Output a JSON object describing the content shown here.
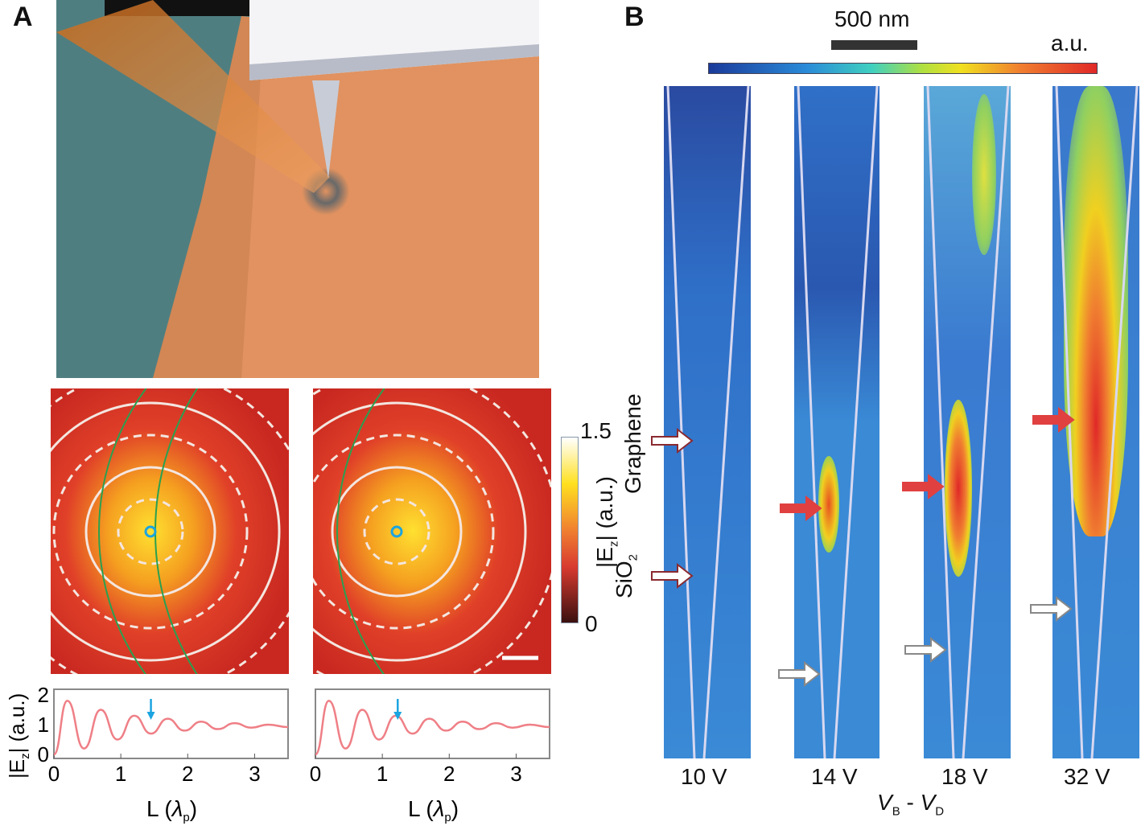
{
  "panel_labels": {
    "a": "A",
    "b": "B"
  },
  "colors": {
    "heat_red": "#d8352a",
    "heat_yellow": "#f6d21b",
    "jet_blue": "#2f6fc8",
    "trace": "#ef7f86",
    "marker": "#1ba4e0"
  },
  "panel_a": {
    "colorbar": {
      "max_label": "1.5",
      "min_label": "0",
      "label": "|E",
      "label_sub": "z",
      "label_tail": "| (a.u.)"
    },
    "side_labels": {
      "graphene": "Graphene",
      "sio2": "SiO",
      "sio2_sub": "2"
    }
  },
  "panel_b": {
    "scalebar_label": "500 nm",
    "colorbar_unit": "a.u.",
    "strip_labels": [
      "10 V",
      "14 V",
      "18 V",
      "32 V"
    ],
    "xlabel": {
      "v1": "V",
      "s1": "B",
      "sep": " - ",
      "v2": "V",
      "s2": "D"
    }
  },
  "chart_data": [
    {
      "type": "line",
      "title": "",
      "xlabel": "L (λp)",
      "xlabel_main": "L (",
      "xlabel_sym": "λ",
      "xlabel_sub": "p",
      "xlabel_end": ")",
      "ylabel": "|Ez| (a.u.)",
      "ylabel_main": "|E",
      "ylabel_sub": "z",
      "ylabel_end": "| (a.u.)",
      "xlim": [
        0,
        3.5
      ],
      "ylim": [
        0,
        2
      ],
      "xticks": [
        "0",
        "1",
        "2",
        "3"
      ],
      "yticks": [
        "0",
        "1",
        "2"
      ],
      "x": [
        0,
        0.2,
        0.45,
        0.7,
        0.95,
        1.2,
        1.45,
        1.7,
        1.95,
        2.2,
        2.45,
        2.7,
        2.95,
        3.2,
        3.5
      ],
      "y": [
        0,
        1.8,
        0.2,
        1.5,
        0.5,
        1.3,
        0.7,
        1.2,
        0.8,
        1.1,
        0.85,
        1.05,
        0.9,
        1.0,
        0.92
      ],
      "marker_x": 1.45
    },
    {
      "type": "line",
      "title": "",
      "xlabel": "L (λp)",
      "xlabel_main": "L (",
      "xlabel_sym": "λ",
      "xlabel_sub": "p",
      "xlabel_end": ")",
      "xlim": [
        0,
        3.5
      ],
      "ylim": [
        0,
        2
      ],
      "xticks": [
        "0",
        "1",
        "2",
        "3"
      ],
      "x": [
        0,
        0.2,
        0.45,
        0.7,
        0.95,
        1.2,
        1.45,
        1.7,
        1.95,
        2.2,
        2.45,
        2.7,
        2.95,
        3.2,
        3.5
      ],
      "y": [
        0,
        1.8,
        0.2,
        1.5,
        0.5,
        1.3,
        0.7,
        1.2,
        0.8,
        1.1,
        0.85,
        1.05,
        0.9,
        1.0,
        0.92
      ],
      "marker_x": 1.23
    }
  ]
}
